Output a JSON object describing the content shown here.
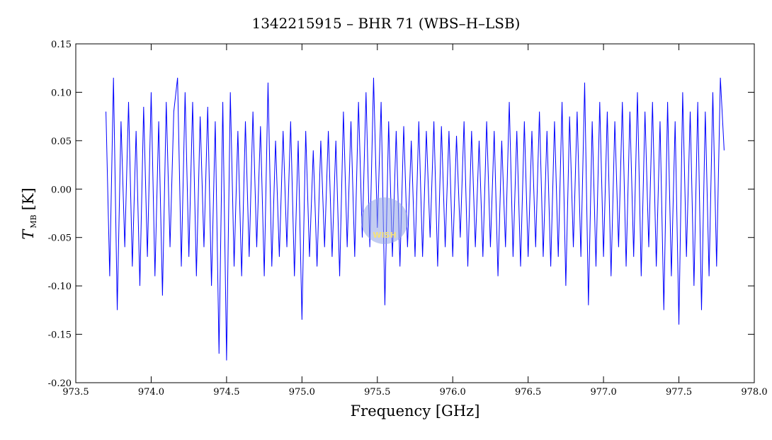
{
  "chart_data": {
    "type": "line",
    "title": "1342215915 – BHR 71 (WBS–H–LSB)",
    "xlabel": "Frequency [GHz]",
    "ylabel": "T",
    "ylabel_sub": "MB",
    "ylabel_unit": "[K]",
    "watermark": "WISH",
    "xlim": [
      973.5,
      978.0
    ],
    "xticks": [
      973.5,
      {
        "value": 974.0,
        "label": "974.0"
      },
      974.5,
      {
        "value": 975.0,
        "label": "975.0"
      },
      975.5,
      {
        "value": 976.0,
        "label": "976.0"
      },
      976.5,
      {
        "value": 977.0,
        "label": "977.0"
      },
      977.5,
      {
        "value": 978.0,
        "label": "978.0"
      }
    ],
    "ylim": [
      -0.2,
      0.15
    ],
    "yticks": [
      {
        "value": -0.2,
        "label": "-0.20"
      },
      -0.15,
      {
        "value": -0.1,
        "label": "-0.10"
      },
      -0.05,
      {
        "value": 0,
        "label": "0.00"
      },
      0.05,
      {
        "value": 0.1,
        "label": "0.10"
      },
      0.15
    ],
    "x": [
      973.7,
      973.725,
      973.75,
      973.775,
      973.8,
      973.825,
      973.85,
      973.875,
      973.9,
      973.925,
      973.95,
      973.975,
      974.0,
      974.025,
      974.05,
      974.075,
      974.1,
      974.125,
      974.15,
      974.175,
      974.2,
      974.225,
      974.25,
      974.275,
      974.3,
      974.325,
      974.35,
      974.375,
      974.4,
      974.425,
      974.45,
      974.475,
      974.5,
      974.525,
      974.55,
      974.575,
      974.6,
      974.625,
      974.65,
      974.675,
      974.7,
      974.725,
      974.75,
      974.775,
      974.8,
      974.825,
      974.85,
      974.875,
      974.9,
      974.925,
      974.95,
      974.975,
      975.0,
      975.025,
      975.05,
      975.075,
      975.1,
      975.125,
      975.15,
      975.175,
      975.2,
      975.225,
      975.25,
      975.275,
      975.3,
      975.325,
      975.35,
      975.375,
      975.4,
      975.425,
      975.45,
      975.475,
      975.5,
      975.525,
      975.55,
      975.575,
      975.6,
      975.625,
      975.65,
      975.675,
      975.7,
      975.725,
      975.75,
      975.775,
      975.8,
      975.825,
      975.85,
      975.875,
      975.9,
      975.925,
      975.95,
      975.975,
      976.0,
      976.025,
      976.05,
      976.075,
      976.1,
      976.125,
      976.15,
      976.175,
      976.2,
      976.225,
      976.25,
      976.275,
      976.3,
      976.325,
      976.35,
      976.375,
      976.4,
      976.425,
      976.45,
      976.475,
      976.5,
      976.525,
      976.55,
      976.575,
      976.6,
      976.625,
      976.65,
      976.675,
      976.7,
      976.725,
      976.75,
      976.775,
      976.8,
      976.825,
      976.85,
      976.875,
      976.9,
      976.925,
      976.95,
      976.975,
      977.0,
      977.025,
      977.05,
      977.075,
      977.1,
      977.125,
      977.15,
      977.175,
      977.2,
      977.225,
      977.25,
      977.275,
      977.3,
      977.325,
      977.35,
      977.375,
      977.4,
      977.425,
      977.45,
      977.475,
      977.5,
      977.525,
      977.55,
      977.575,
      977.6,
      977.625,
      977.65,
      977.675,
      977.7,
      977.725,
      977.75,
      977.775,
      977.8
    ],
    "series": [
      {
        "color": "#0000ff",
        "values": [
          0.08,
          -0.09,
          0.115,
          -0.125,
          0.07,
          -0.06,
          0.09,
          -0.08,
          0.06,
          -0.1,
          0.085,
          -0.07,
          0.1,
          -0.09,
          0.07,
          -0.11,
          0.09,
          -0.06,
          0.08,
          0.115,
          -0.08,
          0.1,
          -0.07,
          0.09,
          -0.09,
          0.075,
          -0.06,
          0.085,
          -0.1,
          0.07,
          -0.17,
          0.09,
          -0.177,
          0.1,
          -0.08,
          0.06,
          -0.09,
          0.07,
          -0.07,
          0.08,
          -0.06,
          0.065,
          -0.09,
          0.11,
          -0.08,
          0.05,
          -0.07,
          0.06,
          -0.06,
          0.07,
          -0.09,
          0.05,
          -0.135,
          0.06,
          -0.07,
          0.04,
          -0.08,
          0.05,
          -0.06,
          0.06,
          -0.07,
          0.05,
          -0.09,
          0.08,
          -0.06,
          0.07,
          -0.07,
          0.09,
          -0.05,
          0.1,
          -0.06,
          0.115,
          -0.04,
          0.09,
          -0.12,
          0.07,
          -0.07,
          0.06,
          -0.08,
          0.065,
          -0.06,
          0.05,
          -0.07,
          0.07,
          -0.07,
          0.06,
          -0.05,
          0.07,
          -0.08,
          0.065,
          -0.06,
          0.06,
          -0.07,
          0.055,
          -0.05,
          0.07,
          -0.08,
          0.06,
          -0.06,
          0.05,
          -0.07,
          0.07,
          -0.06,
          0.06,
          -0.09,
          0.05,
          -0.06,
          0.09,
          -0.07,
          0.06,
          -0.08,
          0.07,
          -0.07,
          0.06,
          -0.06,
          0.08,
          -0.07,
          0.06,
          -0.08,
          0.07,
          -0.07,
          0.09,
          -0.1,
          0.075,
          -0.06,
          0.08,
          -0.07,
          0.11,
          -0.12,
          0.07,
          -0.08,
          0.09,
          -0.07,
          0.08,
          -0.09,
          0.07,
          -0.06,
          0.09,
          -0.08,
          0.08,
          -0.07,
          0.1,
          -0.09,
          0.08,
          -0.06,
          0.09,
          -0.08,
          0.07,
          -0.125,
          0.09,
          -0.09,
          0.07,
          -0.14,
          0.1,
          -0.07,
          0.08,
          -0.1,
          0.09,
          -0.125,
          0.08,
          -0.09,
          0.1,
          -0.08,
          0.115,
          0.04
        ]
      }
    ]
  }
}
